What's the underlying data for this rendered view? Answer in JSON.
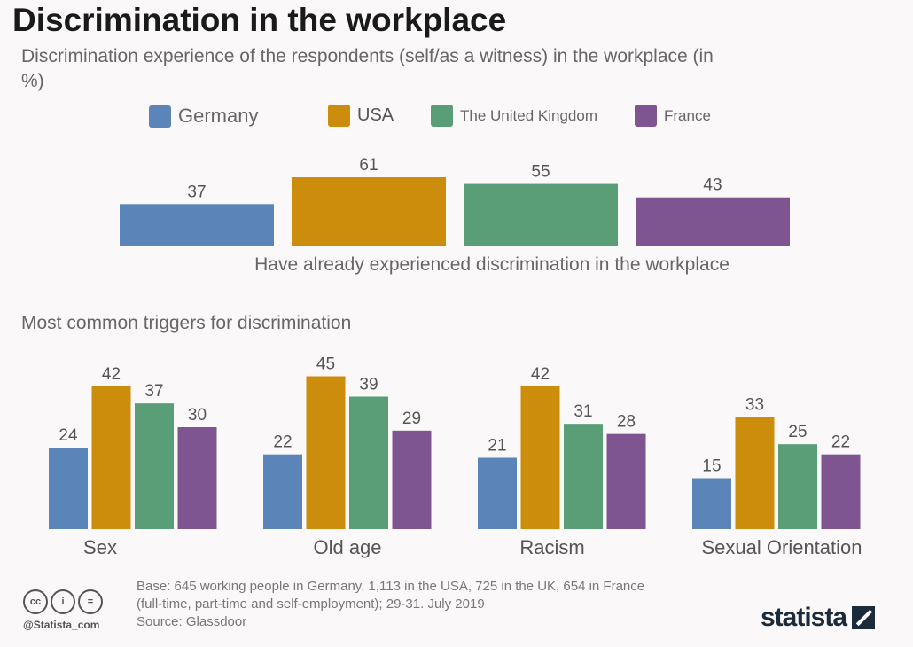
{
  "title": "Discrimination in the workplace",
  "subtitle": "Discrimination experience of the respondents (self/as a witness) in the workplace (in %)",
  "colors": {
    "Germany": "#5b85b8",
    "USA": "#cc8c0c",
    "The United Kingdom": "#5a9e78",
    "France": "#7e5590"
  },
  "legend": [
    "Germany",
    "USA",
    "The United Kingdom",
    "France"
  ],
  "chart_data": [
    {
      "type": "bar",
      "title": "",
      "xlabel": "Have already experienced discrimination in the workplace",
      "ylabel": "",
      "categories": [
        "Germany",
        "USA",
        "The United Kingdom",
        "France"
      ],
      "values": [
        37,
        61,
        55,
        43
      ],
      "ylim": [
        0,
        61
      ],
      "grid": false
    },
    {
      "type": "bar",
      "title": "Most common triggers for discrimination",
      "xlabel": "",
      "ylabel": "",
      "categories": [
        "Sex",
        "Old age",
        "Racism",
        "Sexual Orientation"
      ],
      "series": [
        {
          "name": "Germany",
          "values": [
            24,
            22,
            21,
            15
          ]
        },
        {
          "name": "USA",
          "values": [
            42,
            45,
            42,
            33
          ]
        },
        {
          "name": "The United Kingdom",
          "values": [
            37,
            39,
            31,
            25
          ]
        },
        {
          "name": "France",
          "values": [
            30,
            29,
            28,
            22
          ]
        }
      ],
      "ylim": [
        0,
        45
      ],
      "grid": false,
      "legend": "top"
    }
  ],
  "footer": {
    "base": "Base: 645 working people in Germany, 1,113 in the USA, 725 in the UK, 654 in France",
    "detail": "(full-time, part-time and self-employment); 29-31. July 2019",
    "source": "Source: Glassdoor",
    "handle": "@Statista_com",
    "cc": [
      "cc",
      "i",
      "="
    ],
    "logo": "statista"
  }
}
